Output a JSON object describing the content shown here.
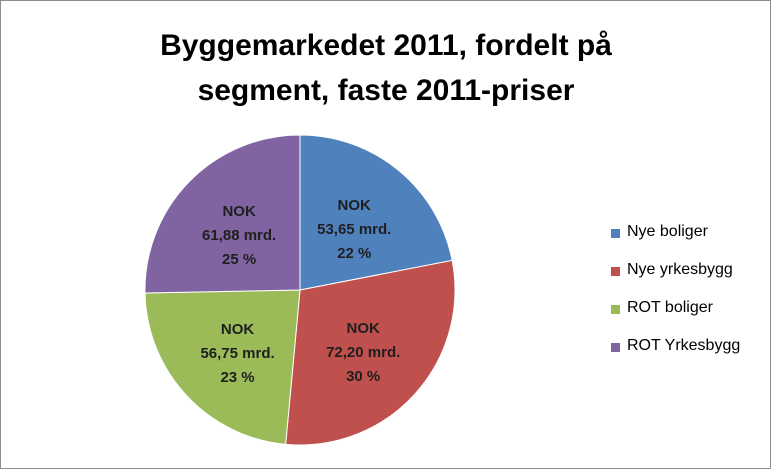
{
  "chart_data": {
    "type": "pie",
    "title": "Byggemarkedet 2011, fordelt på segment, faste 2011-priser",
    "categories": [
      "Nye boliger",
      "Nye yrkesbygg",
      "ROT boliger",
      "ROT Yrkesbygg"
    ],
    "values": [
      53.65,
      72.2,
      56.75,
      61.88
    ],
    "value_labels": [
      "NOK\n53,65 mrd.\n22 %",
      "NOK\n72,20 mrd.\n30 %",
      "NOK\n56,75 mrd.\n23 %",
      "NOK\n61,88 mrd.\n25 %"
    ],
    "colors": [
      "#4f81bd",
      "#c0504d",
      "#9bbb59",
      "#8064a2"
    ],
    "legend": "right"
  }
}
